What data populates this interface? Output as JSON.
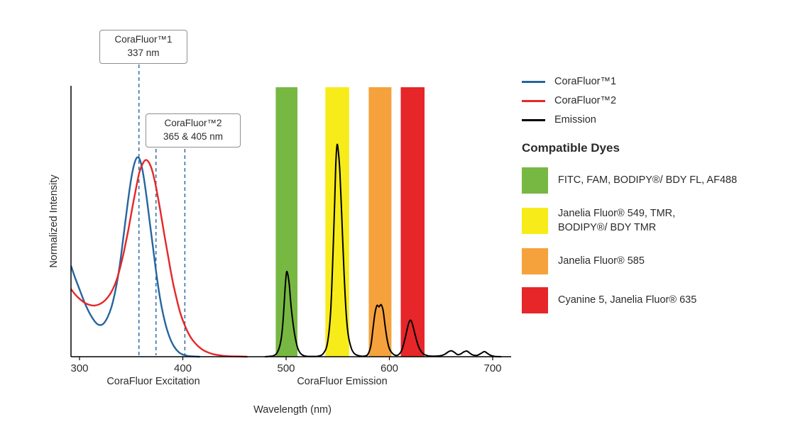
{
  "chart_data": {
    "type": "line",
    "title": "",
    "xlabel": "Wavelength (nm)",
    "ylabel": "Normalized Intensity",
    "xlim": [
      292,
      710
    ],
    "ylim": [
      0,
      1
    ],
    "xticks": [
      300,
      400,
      500,
      600,
      700
    ],
    "grid": false,
    "legend_position": "right",
    "x_axis_section_labels": [
      {
        "text": "CoraFluor Excitation"
      },
      {
        "text": "CoraFluor Emission"
      }
    ],
    "dashed_line_color": "#2E6DA4",
    "callouts": [
      {
        "line1": "CoraFluor™1",
        "line2": "337 nm",
        "lines_nm": [
          357.5
        ]
      },
      {
        "line1": "CoraFluor™2",
        "line2": "365 & 405 nm",
        "lines_nm": [
          374,
          402
        ]
      }
    ],
    "bands": [
      {
        "color": "#77B843",
        "x1_nm": 490,
        "x2_nm": 511,
        "legend_dye_index": 0
      },
      {
        "color": "#F7EC1A",
        "x1_nm": 538,
        "x2_nm": 561,
        "legend_dye_index": 1
      },
      {
        "color": "#F5A23C",
        "x1_nm": 580,
        "x2_nm": 602,
        "legend_dye_index": 2
      },
      {
        "color": "#E62628",
        "x1_nm": 611,
        "x2_nm": 634,
        "legend_dye_index": 3
      }
    ],
    "series": [
      {
        "name": "CoraFluor™1",
        "color": "#26659E",
        "width": 2.4,
        "points": [
          [
            292,
            0.335
          ],
          [
            296,
            0.29
          ],
          [
            300,
            0.25
          ],
          [
            305,
            0.2
          ],
          [
            310,
            0.16
          ],
          [
            315,
            0.13
          ],
          [
            319,
            0.118
          ],
          [
            323,
            0.122
          ],
          [
            327,
            0.145
          ],
          [
            331,
            0.185
          ],
          [
            335,
            0.25
          ],
          [
            339,
            0.34
          ],
          [
            343,
            0.46
          ],
          [
            347,
            0.58
          ],
          [
            350,
            0.66
          ],
          [
            353,
            0.715
          ],
          [
            356,
            0.74
          ],
          [
            359,
            0.725
          ],
          [
            362,
            0.67
          ],
          [
            365,
            0.59
          ],
          [
            368,
            0.5
          ],
          [
            371,
            0.41
          ],
          [
            374,
            0.32
          ],
          [
            377,
            0.24
          ],
          [
            380,
            0.175
          ],
          [
            384,
            0.11
          ],
          [
            388,
            0.065
          ],
          [
            392,
            0.035
          ],
          [
            396,
            0.017
          ],
          [
            400,
            0.008
          ],
          [
            405,
            0.003
          ],
          [
            410,
            0.001
          ],
          [
            416,
            0
          ]
        ]
      },
      {
        "name": "CoraFluor™2",
        "color": "#E62628",
        "width": 2.4,
        "points": [
          [
            292,
            0.25
          ],
          [
            296,
            0.23
          ],
          [
            300,
            0.215
          ],
          [
            305,
            0.2
          ],
          [
            310,
            0.192
          ],
          [
            315,
            0.19
          ],
          [
            320,
            0.196
          ],
          [
            325,
            0.21
          ],
          [
            330,
            0.235
          ],
          [
            335,
            0.275
          ],
          [
            339,
            0.325
          ],
          [
            343,
            0.39
          ],
          [
            347,
            0.465
          ],
          [
            351,
            0.55
          ],
          [
            355,
            0.63
          ],
          [
            358,
            0.685
          ],
          [
            361,
            0.715
          ],
          [
            364,
            0.73
          ],
          [
            367,
            0.722
          ],
          [
            370,
            0.695
          ],
          [
            373,
            0.65
          ],
          [
            376,
            0.59
          ],
          [
            379,
            0.525
          ],
          [
            382,
            0.455
          ],
          [
            385,
            0.39
          ],
          [
            388,
            0.325
          ],
          [
            391,
            0.265
          ],
          [
            394,
            0.215
          ],
          [
            397,
            0.17
          ],
          [
            400,
            0.135
          ],
          [
            404,
            0.098
          ],
          [
            408,
            0.07
          ],
          [
            412,
            0.05
          ],
          [
            416,
            0.035
          ],
          [
            420,
            0.024
          ],
          [
            425,
            0.015
          ],
          [
            430,
            0.009
          ],
          [
            436,
            0.005
          ],
          [
            443,
            0.002
          ],
          [
            452,
            0.001
          ],
          [
            462,
            0
          ]
        ]
      },
      {
        "name": "Emission",
        "color": "#000000",
        "width": 2,
        "points": [
          [
            480,
            0
          ],
          [
            488,
            0.004
          ],
          [
            492,
            0.02
          ],
          [
            495,
            0.06
          ],
          [
            497,
            0.13
          ],
          [
            499,
            0.25
          ],
          [
            500,
            0.3
          ],
          [
            501,
            0.315
          ],
          [
            503,
            0.27
          ],
          [
            505,
            0.18
          ],
          [
            508,
            0.09
          ],
          [
            511,
            0.035
          ],
          [
            514,
            0.012
          ],
          [
            518,
            0.003
          ],
          [
            524,
            0.001
          ],
          [
            531,
            0.002
          ],
          [
            536,
            0.012
          ],
          [
            540,
            0.05
          ],
          [
            543,
            0.16
          ],
          [
            545,
            0.34
          ],
          [
            547,
            0.57
          ],
          [
            548,
            0.7
          ],
          [
            549,
            0.775
          ],
          [
            550,
            0.78
          ],
          [
            552,
            0.69
          ],
          [
            554,
            0.51
          ],
          [
            556,
            0.32
          ],
          [
            558,
            0.17
          ],
          [
            560,
            0.085
          ],
          [
            563,
            0.033
          ],
          [
            566,
            0.012
          ],
          [
            570,
            0.004
          ],
          [
            575,
            0.002
          ],
          [
            579,
            0.008
          ],
          [
            582,
            0.04
          ],
          [
            584,
            0.1
          ],
          [
            586,
            0.16
          ],
          [
            588,
            0.19
          ],
          [
            590,
            0.185
          ],
          [
            592,
            0.193
          ],
          [
            594,
            0.17
          ],
          [
            596,
            0.11
          ],
          [
            598,
            0.06
          ],
          [
            600,
            0.03
          ],
          [
            603,
            0.012
          ],
          [
            606,
            0.005
          ],
          [
            609,
            0.008
          ],
          [
            612,
            0.025
          ],
          [
            615,
            0.065
          ],
          [
            618,
            0.115
          ],
          [
            620,
            0.135
          ],
          [
            622,
            0.125
          ],
          [
            625,
            0.08
          ],
          [
            628,
            0.04
          ],
          [
            631,
            0.018
          ],
          [
            634,
            0.008
          ],
          [
            638,
            0.003
          ],
          [
            644,
            0.002
          ],
          [
            650,
            0.004
          ],
          [
            654,
            0.01
          ],
          [
            657,
            0.018
          ],
          [
            660,
            0.022
          ],
          [
            663,
            0.016
          ],
          [
            666,
            0.008
          ],
          [
            669,
            0.01
          ],
          [
            672,
            0.018
          ],
          [
            675,
            0.021
          ],
          [
            678,
            0.013
          ],
          [
            681,
            0.006
          ],
          [
            685,
            0.005
          ],
          [
            689,
            0.013
          ],
          [
            692,
            0.019
          ],
          [
            695,
            0.012
          ],
          [
            698,
            0.005
          ],
          [
            702,
            0.001
          ],
          [
            708,
            0
          ]
        ]
      }
    ]
  },
  "legend": {
    "heading": "Compatible Dyes",
    "dyes": [
      {
        "label": "FITC, FAM, BODIPY®/ BDY FL, AF488"
      },
      {
        "label": "Janelia Fluor® 549, TMR,\nBODIPY®/ BDY TMR"
      },
      {
        "label": "Janelia Fluor® 585"
      },
      {
        "label": "Cyanine 5, Janelia Fluor® 635"
      }
    ]
  }
}
